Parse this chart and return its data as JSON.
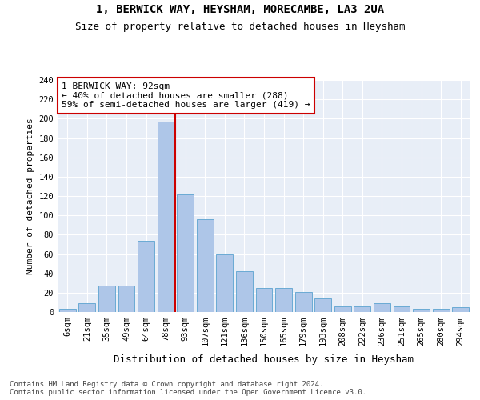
{
  "title": "1, BERWICK WAY, HEYSHAM, MORECAMBE, LA3 2UA",
  "subtitle": "Size of property relative to detached houses in Heysham",
  "xlabel": "Distribution of detached houses by size in Heysham",
  "ylabel": "Number of detached properties",
  "bar_labels": [
    "6sqm",
    "21sqm",
    "35sqm",
    "49sqm",
    "64sqm",
    "78sqm",
    "93sqm",
    "107sqm",
    "121sqm",
    "136sqm",
    "150sqm",
    "165sqm",
    "179sqm",
    "193sqm",
    "208sqm",
    "222sqm",
    "236sqm",
    "251sqm",
    "265sqm",
    "280sqm",
    "294sqm"
  ],
  "bar_values": [
    3,
    9,
    27,
    27,
    74,
    197,
    122,
    96,
    60,
    42,
    25,
    25,
    21,
    14,
    6,
    6,
    9,
    6,
    3,
    3,
    5
  ],
  "bar_color": "#aec6e8",
  "bar_edgecolor": "#6aaad4",
  "background_color": "#e8eef7",
  "vline_x": 5.47,
  "annotation_title": "1 BERWICK WAY: 92sqm",
  "annotation_line1": "← 40% of detached houses are smaller (288)",
  "annotation_line2": "59% of semi-detached houses are larger (419) →",
  "vline_color": "#cc0000",
  "annotation_box_color": "#ffffff",
  "annotation_box_edgecolor": "#cc0000",
  "ylim": [
    0,
    240
  ],
  "yticks": [
    0,
    20,
    40,
    60,
    80,
    100,
    120,
    140,
    160,
    180,
    200,
    220,
    240
  ],
  "footer_line1": "Contains HM Land Registry data © Crown copyright and database right 2024.",
  "footer_line2": "Contains public sector information licensed under the Open Government Licence v3.0.",
  "title_fontsize": 10,
  "subtitle_fontsize": 9,
  "xlabel_fontsize": 9,
  "ylabel_fontsize": 8,
  "tick_fontsize": 7.5,
  "footer_fontsize": 6.5,
  "annotation_fontsize": 8
}
